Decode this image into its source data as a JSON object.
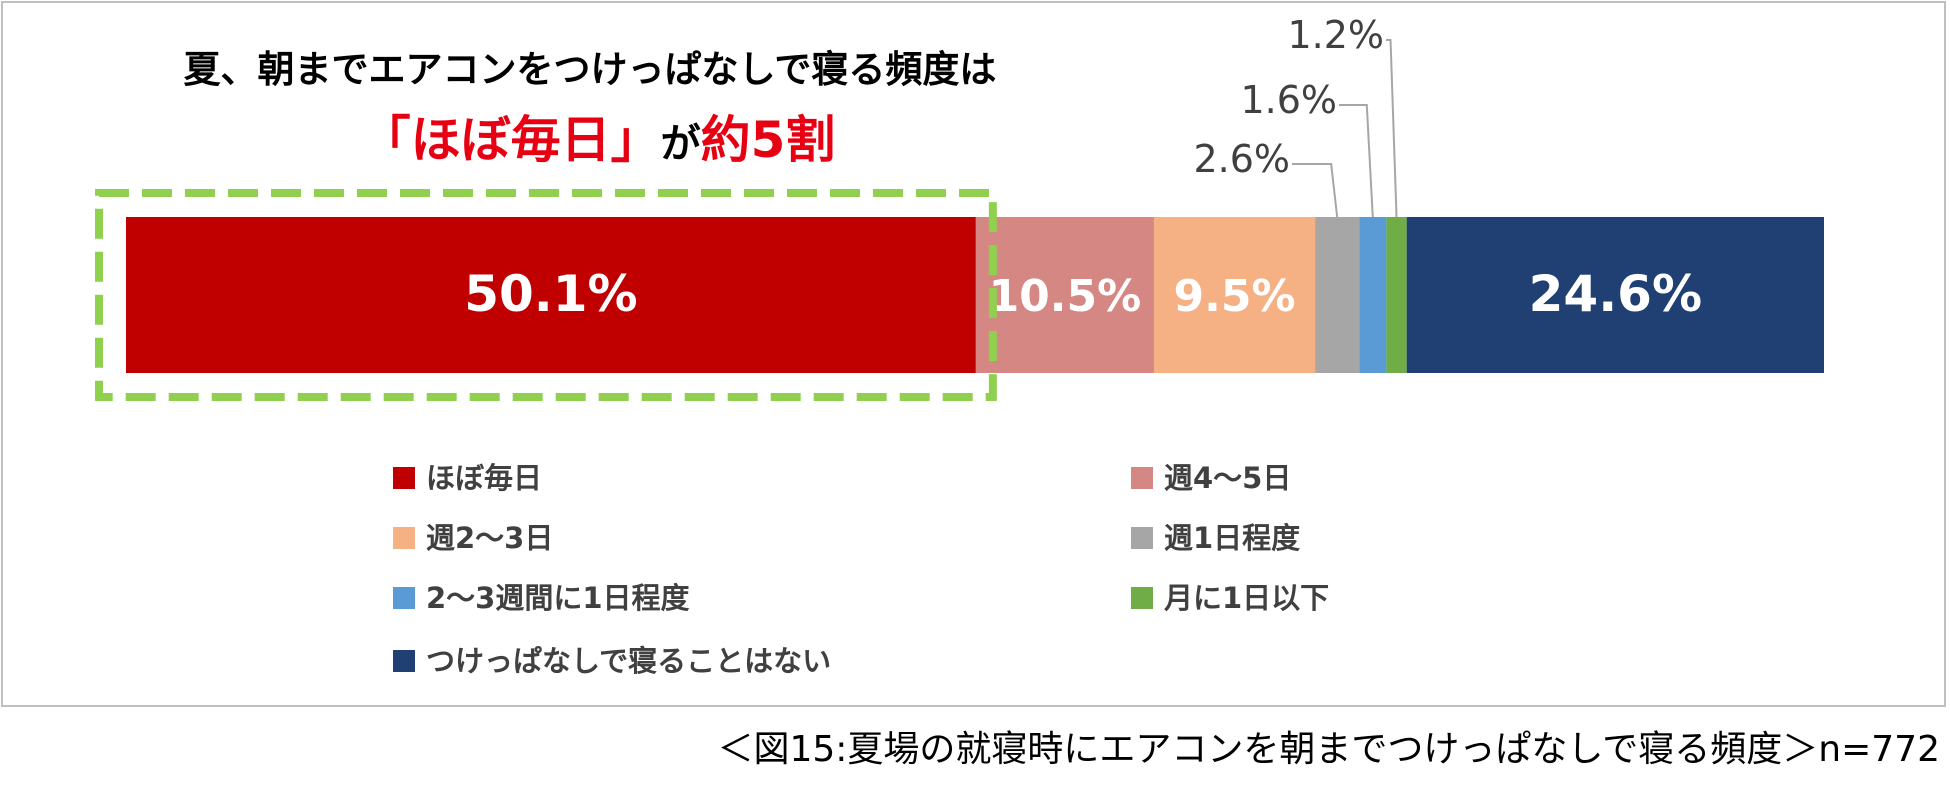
{
  "headline": {
    "line1": "夏、朝までエアコンをつけっぱなしで寝る頻度は",
    "line2_part1": "「ほぼ毎日」",
    "line2_part2": "が",
    "line2_part3": "約5割"
  },
  "chart_data": {
    "type": "bar",
    "stacked": true,
    "orientation": "horizontal",
    "unit": "%",
    "series": [
      {
        "name": "ほぼ毎日",
        "value": 50.1,
        "label": "50.1%",
        "color": "#c00000",
        "label_color": "#ffffff"
      },
      {
        "name": "週4〜5日",
        "value": 10.5,
        "label": "10.5%",
        "color": "#d48783",
        "label_color": "#ffffff"
      },
      {
        "name": "週2〜3日",
        "value": 9.5,
        "label": "9.5%",
        "color": "#f5b183",
        "label_color": "#ffffff"
      },
      {
        "name": "週1日程度",
        "value": 2.6,
        "label": "2.6%",
        "color": "#a6a6a6",
        "label_color": "#404040"
      },
      {
        "name": "2〜3週間に1日程度",
        "value": 1.6,
        "label": "1.6%",
        "color": "#5b9bd5",
        "label_color": "#404040"
      },
      {
        "name": "月に1日以下",
        "value": 1.2,
        "label": "1.2%",
        "color": "#70ad47",
        "label_color": "#404040"
      },
      {
        "name": "つけっぱなしで寝ることはない",
        "value": 24.6,
        "label": "24.6%",
        "color": "#203f73",
        "label_color": "#ffffff"
      }
    ],
    "highlight": {
      "category": "ほぼ毎日",
      "style": "dashed-border",
      "color": "#8fd14f"
    },
    "legend_placement": "bottom"
  },
  "caption": "＜図15:夏場の就寝時にエアコンを朝までつけっぱなしで寝る頻度＞n=772"
}
